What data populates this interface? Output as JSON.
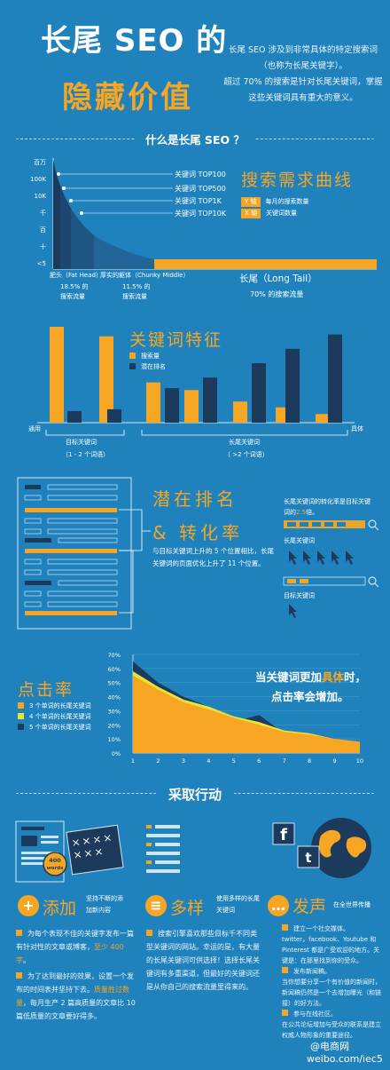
{
  "header": {
    "title_line1": "长尾 SEO 的",
    "title_line2": "隐藏价值",
    "intro_p1": "长尾 SEO 涉及到非常具体的特定搜索词（也称为长尾关键字）。",
    "intro_p2": "超过 70% 的搜索是针对长尾关键词，掌握这些关键词具有重大的意义。"
  },
  "section1": {
    "heading": "什么是长尾 SEO ？",
    "chart_title": "搜索需求曲线",
    "y_ticks": [
      "百万",
      "100K",
      "10K",
      "千",
      "百",
      "十",
      "<5"
    ],
    "labels": [
      "关键词 TOP100",
      "关键词 TOP500",
      "关键词 TOP1K",
      "关键词 TOP10K"
    ],
    "legend_y_tag": "Y 轴",
    "legend_y": "每月的搜索数量",
    "legend_x_tag": "X 轴",
    "legend_x": "关键词数量",
    "fat_head": "肥头（Fat Head）",
    "fat_head_pct": "18.5% 的",
    "fat_head_sub": "搜索流量",
    "chunky": "厚实的躯体（Chunky Middle）",
    "chunky_pct": "11.5% 的",
    "chunky_sub": "搜索流量",
    "long_tail": "长尾（Long Tail）",
    "long_tail_pct": "70% 的搜索流量"
  },
  "section2": {
    "title": "关键词特征",
    "legend": [
      "搜索量",
      "潜在排名"
    ],
    "axis_left": "通用",
    "axis_right": "具体",
    "group1": "目标关键词",
    "group1_sub": "（1 - 2 个词语）",
    "group2": "长尾关键词",
    "group2_sub": "（ >2 个词语）"
  },
  "section3": {
    "title1": "潜在排名",
    "title2": "& 转化率",
    "desc": "与目标关键词上升的 5 个位置相比，长尾关键词的页面优化上升了 11 个位置。",
    "right_intro_a": "长尾关键词的转化率是目标关键词的",
    "right_intro_hl": "2.5",
    "right_intro_b": "倍。",
    "longtail_label": "长尾关键词",
    "target_label": "目标关键词"
  },
  "section4": {
    "title": "点击率",
    "legend": [
      "3 个单词的长尾关键词",
      "4 个单词的长尾关键词",
      "5 个单词的长尾关键词"
    ],
    "headline_a": "当关键词更加",
    "headline_hl": "具体",
    "headline_b": "时，",
    "headline_2": "点击率会增加。"
  },
  "section5": {
    "heading": "采取行动",
    "badge": "400 words",
    "add_title": "添加",
    "add_sub": "坚持不断的添加新内容",
    "div_title": "多样",
    "div_sub": "使用多样的长尾关键词",
    "voice_title": "发声",
    "voice_sub": "在全世界传播",
    "add_p1a": "为每个表现不佳的关键字发布一篇有针对性的文章或博客，",
    "add_p1hl": "至少 400 字",
    "add_p1b": "。",
    "add_p2a": "为了达到最好的效果，设置一个发布的时间表并坚持下去。",
    "add_p2hl": "质量胜过数量",
    "add_p2b": "，每月生产 2 篇高质量的文章比 10 篇低质量的文章要好得多。",
    "div_p": "搜索引擎喜欢那些目标千不同类型关键词的网站。幸运的是，有大量的长尾关键词可供选择！选择长尾关键词有多重渠道，但最好的关键词还是从你自己的搜索流量里得来的。",
    "voice_p1": "建立一个社交媒体。",
    "voice_p1b": "twitter，facebook、Youtube 和 Pinterest 都是广受欢迎的地方。关键是：在那里找到你的受众。",
    "voice_p2": "发布新闻稿。",
    "voice_p2b": "当你想要分享一个有价值的新闻时，新闻稿仍然是一个去增加曝光（和链接）的好方法。",
    "voice_p3": "参与在线社区。",
    "voice_p3b": "在公共论坛增加与受众的联系是建立权威人物形象的重要途径。"
  },
  "footer": {
    "watermark1": "@电商网",
    "watermark2": "weibo.com/iec5"
  },
  "colors": {
    "bg": "#1f82bd",
    "orange": "#f6a623",
    "navy": "#1b3a5c",
    "yellow": "#e8e337"
  },
  "chart_data": [
    {
      "type": "area",
      "title": "搜索需求曲线",
      "xlabel": "关键词数量",
      "ylabel": "每月的搜索数量",
      "y_ticks": [
        "百万",
        "100K",
        "10K",
        "千",
        "百",
        "十",
        "<5"
      ],
      "segments": [
        {
          "name": "肥头（Fat Head）",
          "share": "18.5%"
        },
        {
          "name": "厚实的躯体（Chunky Middle）",
          "share": "11.5%"
        },
        {
          "name": "长尾（Long Tail）",
          "share": "70%"
        }
      ]
    },
    {
      "type": "bar",
      "title": "关键词特征",
      "categories": [
        "g1",
        "g2",
        "g3",
        "g4",
        "g5",
        "g6",
        "g7"
      ],
      "groups": [
        "目标关键词",
        "目标关键词",
        "长尾关键词",
        "长尾关键词",
        "长尾关键词",
        "长尾关键词",
        "长尾关键词"
      ],
      "series": [
        {
          "name": "搜索量",
          "values": [
            10,
            9,
            4.2,
            3.4,
            2.2,
            1.6,
            0.9
          ]
        },
        {
          "name": "潜在排名",
          "values": [
            1.2,
            1.4,
            3.6,
            4.7,
            6.2,
            7.7,
            9.2
          ]
        }
      ],
      "ylim": [
        0,
        10
      ]
    },
    {
      "type": "area",
      "title": "点击率",
      "x": [
        1,
        2,
        3,
        4,
        5,
        6,
        7,
        8,
        9,
        10
      ],
      "yticks": [
        "0%",
        "10%",
        "20%",
        "30%",
        "40%",
        "50%",
        "60%",
        "70%"
      ],
      "ylim": [
        0,
        70
      ],
      "series": [
        {
          "name": "5 个单词的长尾关键词",
          "values": [
            65,
            50,
            40,
            33,
            22,
            27,
            14,
            14,
            10,
            8
          ]
        },
        {
          "name": "4 个单词的长尾关键词",
          "values": [
            58,
            47,
            38,
            33,
            26,
            22,
            16,
            14,
            10,
            8
          ]
        },
        {
          "name": "3 个单词的长尾关键词",
          "values": [
            55,
            45,
            36,
            31,
            25,
            20,
            15,
            13,
            10,
            8
          ]
        }
      ]
    }
  ]
}
